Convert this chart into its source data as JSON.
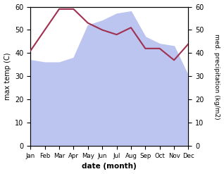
{
  "months": [
    "Jan",
    "Feb",
    "Mar",
    "Apr",
    "May",
    "Jun",
    "Jul",
    "Aug",
    "Sep",
    "Oct",
    "Nov",
    "Dec"
  ],
  "temperature": [
    41,
    50,
    59,
    59,
    53,
    50,
    48,
    51,
    42,
    42,
    37,
    44
  ],
  "precipitation": [
    37,
    36,
    36,
    38,
    52,
    54,
    57,
    58,
    47,
    44,
    43,
    30
  ],
  "temp_color": "#a03050",
  "precip_fill_color": "#bcc5f0",
  "temp_ylim": [
    0,
    60
  ],
  "precip_ylim": [
    0,
    60
  ],
  "xlabel": "date (month)",
  "ylabel_left": "max temp (C)",
  "ylabel_right": "med. precipitation (kg/m2)",
  "yticks": [
    0,
    10,
    20,
    30,
    40,
    50,
    60
  ],
  "bg_color": "#ffffff"
}
